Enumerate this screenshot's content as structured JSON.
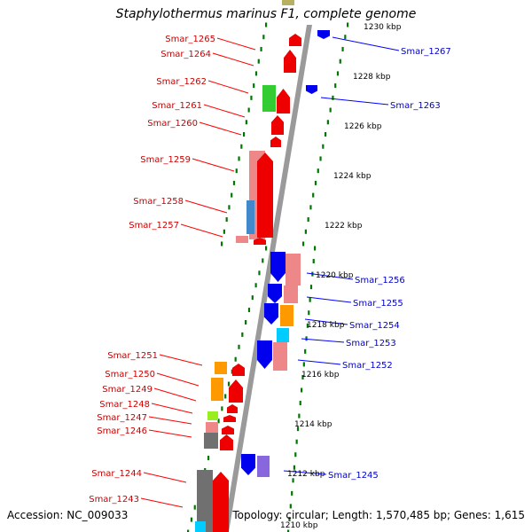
{
  "title": "Staphylothermus marinus F1, complete genome",
  "footer": {
    "accession": "Accession: NC_009033",
    "summary": "Topology: circular; Length: 1,570,485 bp; Genes: 1,615"
  },
  "colors": {
    "forward_label": "#cc0000",
    "reverse_label": "#0000cc",
    "leader_fwd": "#ff0000",
    "leader_rev": "#0000ff",
    "tick_green": "#007700",
    "backbone": "#888888"
  },
  "kbp_ticks": [
    {
      "label": "1230 kbp"
    },
    {
      "label": "1228 kbp"
    },
    {
      "label": "1226 kbp"
    },
    {
      "label": "1224 kbp"
    },
    {
      "label": "1222 kbp"
    },
    {
      "label": "1220 kbp"
    },
    {
      "label": "1218 kbp"
    },
    {
      "label": "1216 kbp"
    },
    {
      "label": "1214 kbp"
    },
    {
      "label": "1212 kbp"
    },
    {
      "label": "1210 kbp"
    }
  ],
  "gene_labels_forward": [
    {
      "label": "Smar_1265"
    },
    {
      "label": "Smar_1264"
    },
    {
      "label": "Smar_1262"
    },
    {
      "label": "Smar_1261"
    },
    {
      "label": "Smar_1260"
    },
    {
      "label": "Smar_1259"
    },
    {
      "label": "Smar_1258"
    },
    {
      "label": "Smar_1257"
    },
    {
      "label": "Smar_1251"
    },
    {
      "label": "Smar_1250"
    },
    {
      "label": "Smar_1249"
    },
    {
      "label": "Smar_1248"
    },
    {
      "label": "Smar_1247"
    },
    {
      "label": "Smar_1246"
    },
    {
      "label": "Smar_1244"
    },
    {
      "label": "Smar_1243"
    }
  ],
  "gene_labels_reverse": [
    {
      "label": "Smar_1267"
    },
    {
      "label": "Smar_1263"
    },
    {
      "label": "Smar_1256"
    },
    {
      "label": "Smar_1255"
    },
    {
      "label": "Smar_1254"
    },
    {
      "label": "Smar_1253"
    },
    {
      "label": "Smar_1252"
    },
    {
      "label": "Smar_1245"
    }
  ]
}
